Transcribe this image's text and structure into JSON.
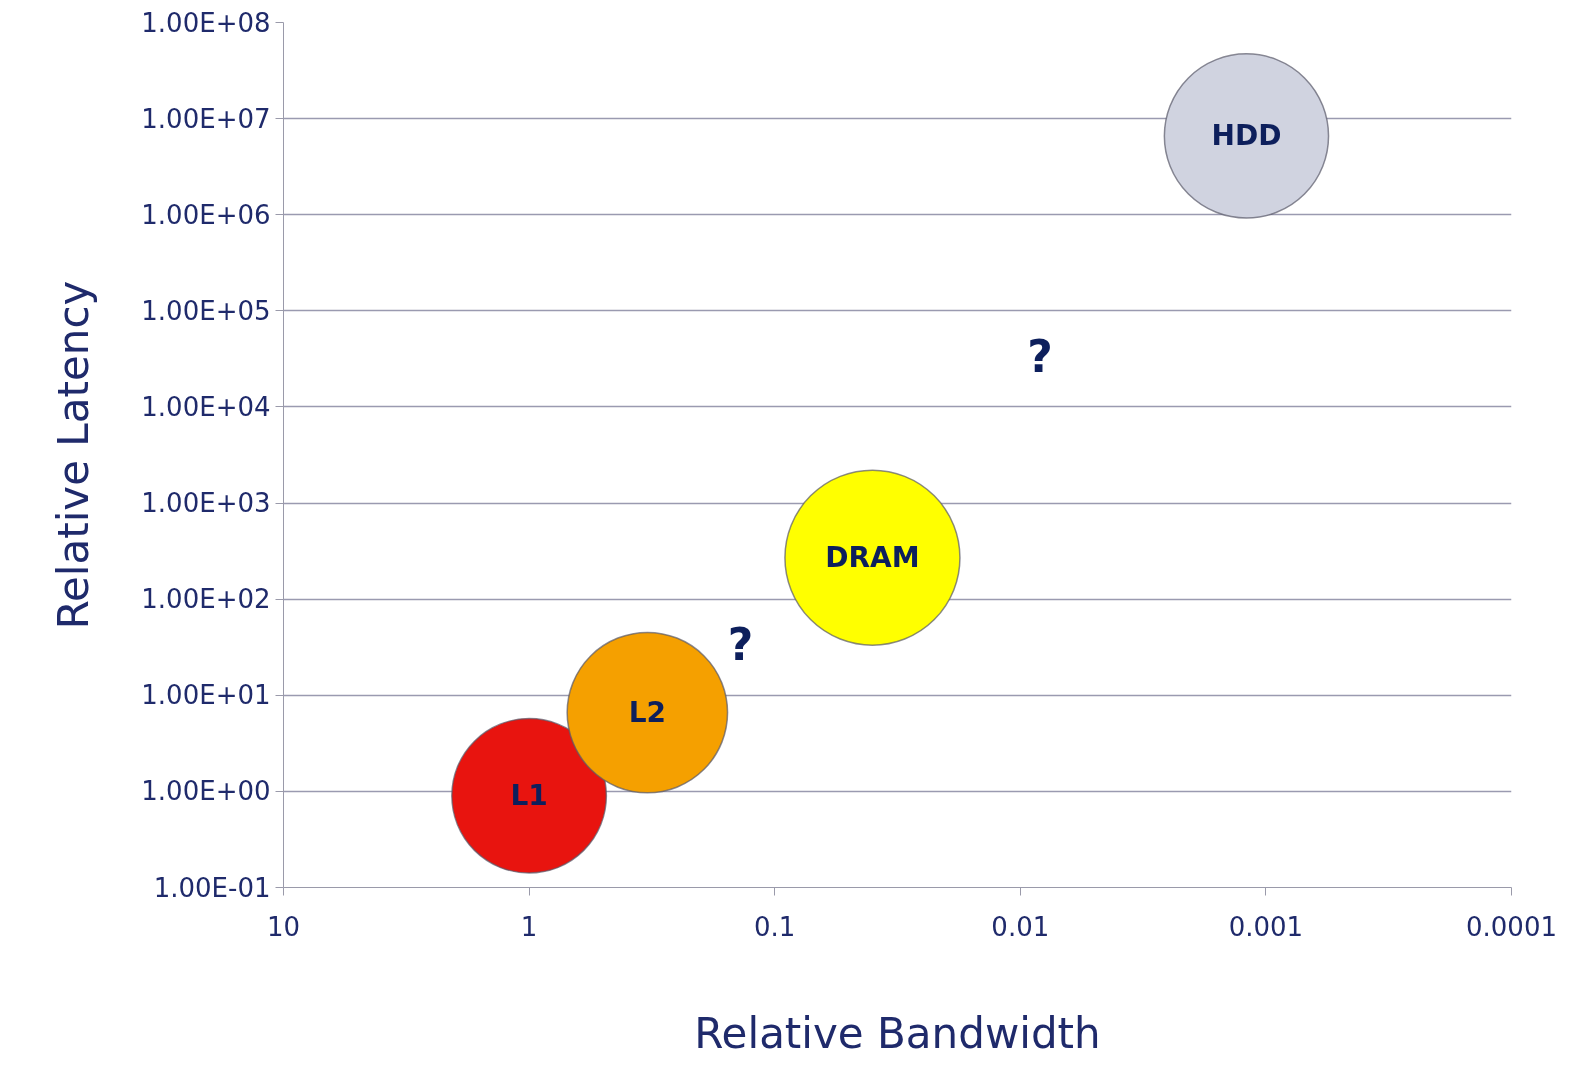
{
  "chart_data": {
    "type": "bubble",
    "xlabel": "Relative Bandwidth",
    "ylabel": "Relative Latency",
    "log": "xy",
    "grid": "y",
    "xlim": [
      10,
      0.0001
    ],
    "xticks": [
      10,
      1,
      0.1,
      0.01,
      0.001,
      0.0001
    ],
    "ylim": [
      0.1,
      100000000
    ],
    "yticks": [
      {
        "value": 0.1,
        "label": "1.00E-01"
      },
      {
        "value": 1,
        "label": "1.00E+00"
      },
      {
        "value": 10,
        "label": "1.00E+01"
      },
      {
        "value": 100,
        "label": "1.00E+02"
      },
      {
        "value": 1000,
        "label": "1.00E+03"
      },
      {
        "value": 10000,
        "label": "1.00E+04"
      },
      {
        "value": 100000,
        "label": "1.00E+05"
      },
      {
        "value": 1000000,
        "label": "1.00E+06"
      },
      {
        "value": 10000000,
        "label": "1.00E+07"
      },
      {
        "value": 100000000,
        "label": "1.00E+08"
      }
    ],
    "series": [
      {
        "name": "L1",
        "color": "#e8140f",
        "x": [
          1
        ],
        "values": [
          0.9
        ],
        "sizes": [
          0.78
        ]
      },
      {
        "name": "L2",
        "color": "#f5a000",
        "x": [
          0.33
        ],
        "values": [
          6.6
        ],
        "sizes": [
          0.84
        ]
      },
      {
        "name": "DRAM",
        "color": "#ffff00",
        "x": [
          0.04
        ],
        "values": [
          270
        ],
        "sizes": [
          1
        ]
      },
      {
        "name": "HDD",
        "color": "#d0d3e0",
        "x": [
          0.0012
        ],
        "values": [
          6600000
        ],
        "sizes": [
          0.88
        ]
      }
    ],
    "annotations": [
      "?",
      "?"
    ]
  }
}
